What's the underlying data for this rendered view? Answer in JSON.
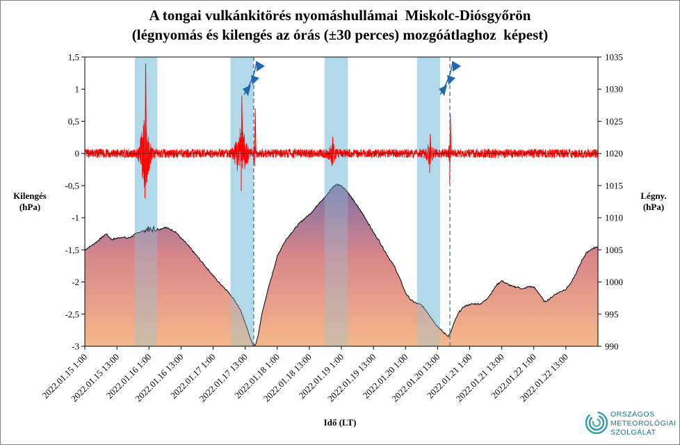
{
  "chart_data": {
    "type": "line",
    "title": "A tongai vulkánkitörés nyomáshullámai  Miskolc-Diósgyőrön",
    "subtitle": "(légnyomás és kilengés az órás (±30 perces) mozgóátlaghoz  képest)",
    "xlabel": "Idő (LT)",
    "ylabel_left": "Kilengés\n(hPa)",
    "ylabel_right": "Légny.\n(hPa)",
    "y_left": {
      "range": [
        -3,
        1.5
      ],
      "ticks": [
        "1,5",
        "1",
        "0,5",
        "0",
        "-0,5",
        "-1",
        "-1,5",
        "-2",
        "-2,5",
        "-3"
      ],
      "tick_values": [
        1.5,
        1,
        0.5,
        0,
        -0.5,
        -1,
        -1.5,
        -2,
        -2.5,
        -3
      ]
    },
    "y_right": {
      "range": [
        990,
        1035
      ],
      "ticks": [
        "1035",
        "1030",
        "1025",
        "1020",
        "1015",
        "1010",
        "1005",
        "1000",
        "995",
        "990"
      ],
      "tick_values": [
        1035,
        1030,
        1025,
        1020,
        1015,
        1010,
        1005,
        1000,
        995,
        990
      ]
    },
    "x_range_hours": [
      0,
      192
    ],
    "x_ticks": [
      {
        "label": "2022.01.15 1:00",
        "hour": 0
      },
      {
        "label": "2022.01.15 13:00",
        "hour": 12
      },
      {
        "label": "2022.01.16 1:00",
        "hour": 24
      },
      {
        "label": "2022.01.16 13:00",
        "hour": 36
      },
      {
        "label": "2022.01.17 1:00",
        "hour": 48
      },
      {
        "label": "2022.01.17 13:00",
        "hour": 60
      },
      {
        "label": "2022.01.18 1:00",
        "hour": 72
      },
      {
        "label": "2022.01.18 13:00",
        "hour": 84
      },
      {
        "label": "2022.01.19 1:00",
        "hour": 96
      },
      {
        "label": "2022.01.19 13:00",
        "hour": 108
      },
      {
        "label": "2022.01.20 1:00",
        "hour": 120
      },
      {
        "label": "2022.01.20 13:00",
        "hour": 132
      },
      {
        "label": "2022.01.21 1:00",
        "hour": 144
      },
      {
        "label": "2022.01.21 13:00",
        "hour": 156
      },
      {
        "label": "2022.01.22 1:00",
        "hour": 168
      },
      {
        "label": "2022.01.22 13:00",
        "hour": 180
      }
    ],
    "wave_bands_hours": [
      [
        18.7,
        27.1
      ],
      [
        54.5,
        63.1
      ],
      [
        89.7,
        98.4
      ],
      [
        124.3,
        132.9
      ]
    ],
    "front_lines_hours": [
      63.2,
      136.6
    ],
    "series": [
      {
        "axis": "right",
        "style": "filled-area",
        "points": [
          [
            0,
            1005.0
          ],
          [
            3,
            1005.8
          ],
          [
            6,
            1006.8
          ],
          [
            8,
            1007.5
          ],
          [
            10,
            1006.6
          ],
          [
            12,
            1006.8
          ],
          [
            14,
            1007.0
          ],
          [
            16,
            1006.8
          ],
          [
            18,
            1007.2
          ],
          [
            20,
            1007.7
          ],
          [
            22,
            1008.0
          ],
          [
            24,
            1008.3
          ],
          [
            26,
            1008.3
          ],
          [
            28,
            1008.2
          ],
          [
            30,
            1008.5
          ],
          [
            32,
            1008.2
          ],
          [
            34,
            1007.8
          ],
          [
            36,
            1006.8
          ],
          [
            38,
            1006.0
          ],
          [
            40,
            1005.0
          ],
          [
            42,
            1004.0
          ],
          [
            44,
            1003.0
          ],
          [
            46,
            1002.0
          ],
          [
            48,
            1001.0
          ],
          [
            50,
            1000.0
          ],
          [
            52,
            999.2
          ],
          [
            54,
            998.3
          ],
          [
            56,
            997.2
          ],
          [
            58,
            995.8
          ],
          [
            60,
            993.7
          ],
          [
            61,
            992.4
          ],
          [
            62,
            991.2
          ],
          [
            63,
            990.1
          ],
          [
            64,
            990.3
          ],
          [
            65,
            992.0
          ],
          [
            66,
            994.5
          ],
          [
            68,
            998.0
          ],
          [
            70,
            1001.0
          ],
          [
            72,
            1004.0
          ],
          [
            74,
            1005.7
          ],
          [
            76,
            1007.0
          ],
          [
            78,
            1008.0
          ],
          [
            80,
            1009.0
          ],
          [
            82,
            1009.8
          ],
          [
            84,
            1010.5
          ],
          [
            86,
            1011.4
          ],
          [
            88,
            1012.5
          ],
          [
            90,
            1013.2
          ],
          [
            92,
            1014.4
          ],
          [
            94,
            1015.2
          ],
          [
            96,
            1015.0
          ],
          [
            98,
            1014.2
          ],
          [
            100,
            1013.0
          ],
          [
            102,
            1011.8
          ],
          [
            104,
            1010.6
          ],
          [
            106,
            1009.2
          ],
          [
            108,
            1007.7
          ],
          [
            110,
            1006.5
          ],
          [
            112,
            1005.0
          ],
          [
            114,
            1003.6
          ],
          [
            116,
            1002.3
          ],
          [
            118,
            1000.4
          ],
          [
            120,
            998.3
          ],
          [
            122,
            997.2
          ],
          [
            124,
            996.7
          ],
          [
            126,
            996.4
          ],
          [
            128,
            995.4
          ],
          [
            130,
            994.2
          ],
          [
            132,
            993.1
          ],
          [
            134,
            992.2
          ],
          [
            136,
            991.6
          ],
          [
            137,
            992.2
          ],
          [
            138,
            993.5
          ],
          [
            140,
            995.3
          ],
          [
            142,
            996.2
          ],
          [
            144,
            996.5
          ],
          [
            146,
            996.6
          ],
          [
            148,
            996.6
          ],
          [
            150,
            997.2
          ],
          [
            152,
            998.2
          ],
          [
            154,
            999.5
          ],
          [
            156,
            1000.2
          ],
          [
            158,
            999.7
          ],
          [
            160,
            999.3
          ],
          [
            162,
            999.2
          ],
          [
            164,
            998.9
          ],
          [
            166,
            999.3
          ],
          [
            168,
            999.2
          ],
          [
            170,
            998.2
          ],
          [
            172,
            996.9
          ],
          [
            174,
            997.4
          ],
          [
            176,
            998.1
          ],
          [
            178,
            998.5
          ],
          [
            180,
            998.9
          ],
          [
            182,
            999.9
          ],
          [
            184,
            1001.5
          ],
          [
            186,
            1003.4
          ],
          [
            188,
            1004.7
          ],
          [
            190,
            1005.2
          ],
          [
            192,
            1005.5
          ]
        ]
      },
      {
        "axis": "left",
        "style": "line",
        "background_amplitude": 0.07,
        "bursts": [
          {
            "center_hour": 22.5,
            "width_hours": 4.0,
            "amplitude": 0.5,
            "peak": 1.4,
            "trough": -0.7
          },
          {
            "center_hour": 58.5,
            "width_hours": 5.0,
            "amplitude": 0.35,
            "peak": 0.9,
            "trough": -0.58
          },
          {
            "center_hour": 63.5,
            "width_hours": 0.8,
            "amplitude": 0.3,
            "peak": 0.7,
            "trough": -0.2
          },
          {
            "center_hour": 92.5,
            "width_hours": 3.0,
            "amplitude": 0.12,
            "peak": 0.26,
            "trough": -0.2
          },
          {
            "center_hour": 129,
            "width_hours": 3.0,
            "amplitude": 0.12,
            "peak": 0.3,
            "trough": -0.3
          },
          {
            "center_hour": 136.5,
            "width_hours": 0.8,
            "amplitude": 0.25,
            "peak": 0.62,
            "trough": -0.45
          }
        ]
      }
    ]
  },
  "logo": {
    "line1": "ORSZÁGOS",
    "line2": "METEOROLÓGIAI",
    "line3": "SZOLGÁLAT"
  },
  "colors": {
    "band": "#b9dfef",
    "kilenges": "#ff0000",
    "pressure_line": "#000000",
    "fill_top": "#7d6fa6",
    "fill_mid": "#d9868a",
    "fill_bottom": "#f5b889",
    "front": "#2166b0",
    "dashed": "#4f6f8f"
  }
}
